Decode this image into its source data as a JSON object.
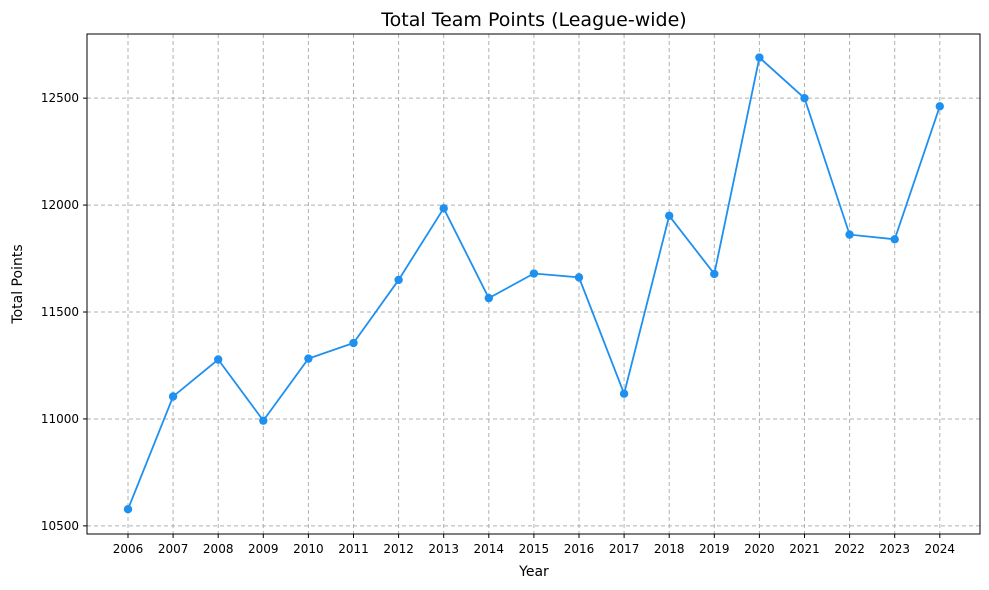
{
  "chart_data": {
    "type": "line",
    "title": "Total Team Points (League-wide)",
    "xlabel": "Year",
    "ylabel": "Total Points",
    "x": [
      "2006",
      "2007",
      "2008",
      "2009",
      "2010",
      "2011",
      "2012",
      "2013",
      "2014",
      "2015",
      "2016",
      "2017",
      "2018",
      "2019",
      "2020",
      "2021",
      "2022",
      "2023",
      "2024"
    ],
    "series": [
      {
        "values": [
          10578,
          11105,
          11278,
          10992,
          11282,
          11355,
          11650,
          11985,
          11565,
          11680,
          11662,
          11118,
          11950,
          11678,
          12690,
          12500,
          11862,
          11840,
          12462
        ]
      }
    ],
    "yticks": [
      10500,
      11000,
      11500,
      12000,
      12500
    ],
    "ylim": [
      10462,
      12800
    ],
    "grid": true,
    "line_color": "#1e90f0",
    "grid_color": "#b0b0b0"
  }
}
